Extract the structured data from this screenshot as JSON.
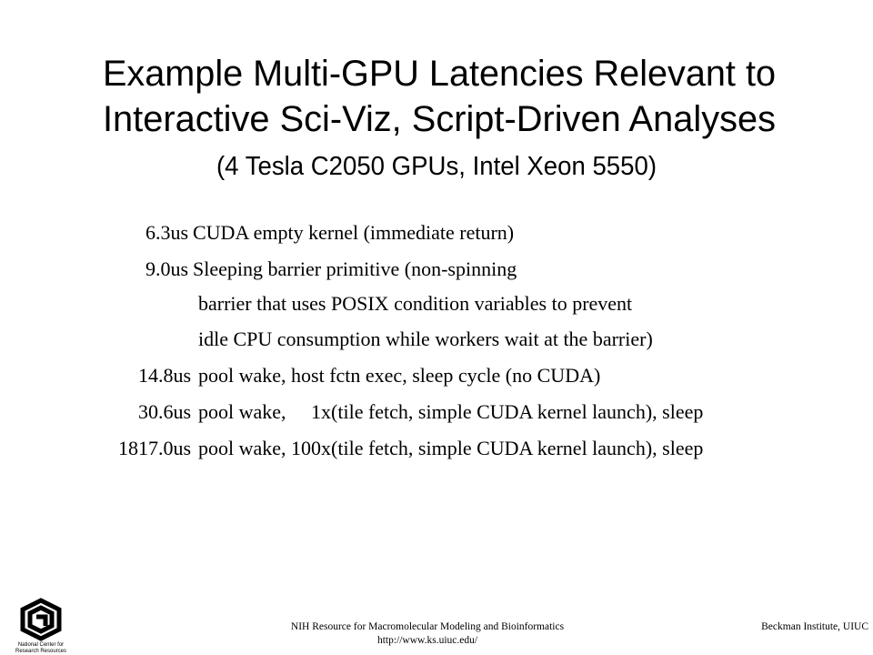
{
  "title": [
    "Example Multi-GPU Latencies Relevant to",
    "Interactive Sci-Viz, Script-Driven Analyses"
  ],
  "subtitle": "(4 Tesla C2050 GPUs, Intel Xeon 5550)",
  "rows": [
    {
      "value": "6.3us",
      "lines": [
        "CUDA empty kernel (immediate return)"
      ]
    },
    {
      "value": "9.0us",
      "lines": [
        "Sleeping barrier primitive (non-spinning",
        "barrier that uses POSIX condition variables to prevent",
        "idle CPU consumption while workers wait at the barrier)"
      ]
    },
    {
      "value": "14.8us",
      "lines": [
        "pool wake, host fctn exec, sleep cycle (no CUDA)"
      ]
    },
    {
      "value": "30.6us",
      "lines": [
        "pool wake,     1x(tile fetch, simple CUDA kernel launch), sleep"
      ]
    },
    {
      "value": "1817.0us",
      "lines": [
        "pool wake, 100x(tile fetch, simple CUDA kernel launch), sleep"
      ]
    }
  ],
  "footer": {
    "center": [
      "NIH Resource for Macromolecular Modeling and Bioinformatics",
      "http://www.ks.uiuc.edu/"
    ],
    "right": "Beckman Institute, UIUC",
    "logo": [
      "National Center for",
      "Research Resources"
    ]
  }
}
